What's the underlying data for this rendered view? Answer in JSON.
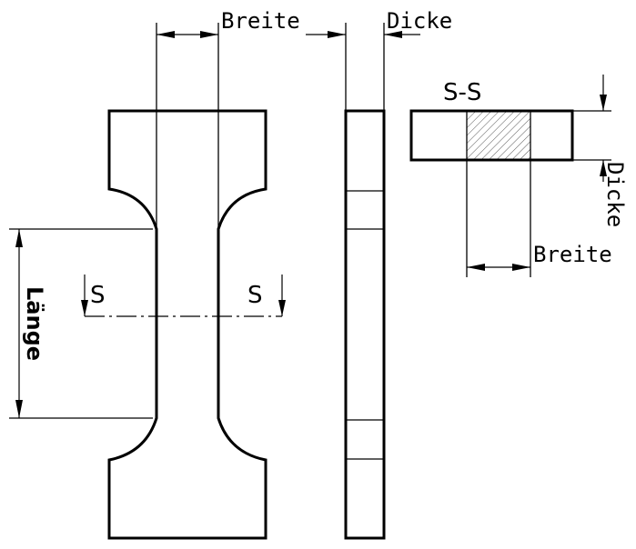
{
  "labels": {
    "width_front": "Breite",
    "thickness_side": "Dicke",
    "section_title": "S-S",
    "thickness_section": "Dicke",
    "width_section": "Breite",
    "length": "Länge",
    "section_mark_left": "S",
    "section_mark_right": "S"
  }
}
